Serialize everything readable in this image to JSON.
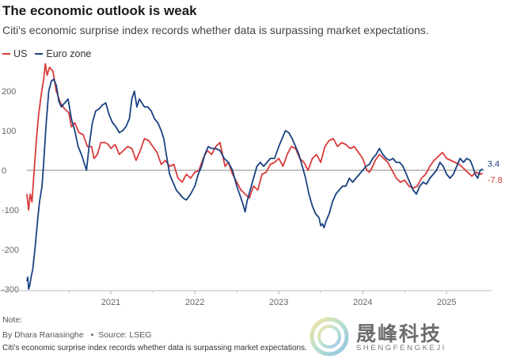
{
  "header": {
    "title": "The economic outlook is weak",
    "subtitle": "Citi's economic surprise index records whether data is surpassing market expectations."
  },
  "footer": {
    "note": "Note:",
    "credit": "By Dhara Ranasinghe",
    "bullet": "•",
    "source": "Source: LSEG",
    "subtitle_repeat": "Citi's economic surprise index records whether data is surpassing market expectations."
  },
  "watermark": {
    "text": "晟峰科技",
    "sub": "SHENGFENGKEJI"
  },
  "colors": {
    "us": "#d93a3a",
    "euro": "#1b4282",
    "axis": "#bbbbbb",
    "zero": "#888888",
    "label": "#666666"
  },
  "chart_data": {
    "type": "line",
    "title": "The economic outlook is weak",
    "xlabel": "",
    "ylabel": "",
    "xlim": [
      2020.0,
      2025.45
    ],
    "ylim": [
      -300,
      270
    ],
    "yticks": [
      -300,
      -200,
      -100,
      0,
      100,
      200
    ],
    "ytick_labels": [
      "-300",
      "-200",
      "-100",
      "0",
      "100",
      "200"
    ],
    "xticks": [
      2021,
      2022,
      2023,
      2024,
      2025
    ],
    "xtick_labels": [
      "2021",
      "2022",
      "2023",
      "2024",
      "2025"
    ],
    "legend": [
      "US",
      "Euro zone"
    ],
    "legend_position": "top-left",
    "series": [
      {
        "name": "US",
        "end_label": "-7.8",
        "points": [
          [
            2020.0,
            -60
          ],
          [
            2020.02,
            -100
          ],
          [
            2020.04,
            -60
          ],
          [
            2020.06,
            -80
          ],
          [
            2020.08,
            -20
          ],
          [
            2020.11,
            70
          ],
          [
            2020.14,
            140
          ],
          [
            2020.17,
            190
          ],
          [
            2020.2,
            230
          ],
          [
            2020.22,
            270
          ],
          [
            2020.24,
            240
          ],
          [
            2020.27,
            260
          ],
          [
            2020.31,
            250
          ],
          [
            2020.35,
            200
          ],
          [
            2020.4,
            170
          ],
          [
            2020.45,
            155
          ],
          [
            2020.5,
            145
          ],
          [
            2020.53,
            110
          ],
          [
            2020.57,
            120
          ],
          [
            2020.62,
            95
          ],
          [
            2020.67,
            90
          ],
          [
            2020.72,
            60
          ],
          [
            2020.77,
            60
          ],
          [
            2020.8,
            30
          ],
          [
            2020.84,
            40
          ],
          [
            2020.88,
            70
          ],
          [
            2020.93,
            70
          ],
          [
            2020.97,
            65
          ],
          [
            2021.0,
            55
          ],
          [
            2021.05,
            65
          ],
          [
            2021.1,
            40
          ],
          [
            2021.15,
            50
          ],
          [
            2021.2,
            60
          ],
          [
            2021.25,
            55
          ],
          [
            2021.3,
            25
          ],
          [
            2021.35,
            50
          ],
          [
            2021.4,
            80
          ],
          [
            2021.45,
            75
          ],
          [
            2021.5,
            60
          ],
          [
            2021.55,
            45
          ],
          [
            2021.6,
            15
          ],
          [
            2021.65,
            25
          ],
          [
            2021.7,
            10
          ],
          [
            2021.75,
            15
          ],
          [
            2021.8,
            -20
          ],
          [
            2021.85,
            -30
          ],
          [
            2021.9,
            -10
          ],
          [
            2021.95,
            -20
          ],
          [
            2022.0,
            -5
          ],
          [
            2022.05,
            0
          ],
          [
            2022.1,
            30
          ],
          [
            2022.15,
            50
          ],
          [
            2022.2,
            40
          ],
          [
            2022.25,
            60
          ],
          [
            2022.3,
            70
          ],
          [
            2022.33,
            40
          ],
          [
            2022.36,
            10
          ],
          [
            2022.4,
            20
          ],
          [
            2022.45,
            -10
          ],
          [
            2022.5,
            -30
          ],
          [
            2022.55,
            -50
          ],
          [
            2022.6,
            -60
          ],
          [
            2022.65,
            -70
          ],
          [
            2022.7,
            -40
          ],
          [
            2022.75,
            -50
          ],
          [
            2022.8,
            -10
          ],
          [
            2022.85,
            -5
          ],
          [
            2022.9,
            15
          ],
          [
            2022.95,
            20
          ],
          [
            2023.0,
            30
          ],
          [
            2023.05,
            10
          ],
          [
            2023.1,
            40
          ],
          [
            2023.15,
            60
          ],
          [
            2023.2,
            55
          ],
          [
            2023.25,
            30
          ],
          [
            2023.3,
            20
          ],
          [
            2023.35,
            0
          ],
          [
            2023.4,
            30
          ],
          [
            2023.45,
            40
          ],
          [
            2023.5,
            20
          ],
          [
            2023.55,
            60
          ],
          [
            2023.6,
            75
          ],
          [
            2023.65,
            80
          ],
          [
            2023.7,
            60
          ],
          [
            2023.75,
            70
          ],
          [
            2023.8,
            65
          ],
          [
            2023.85,
            55
          ],
          [
            2023.9,
            60
          ],
          [
            2023.95,
            45
          ],
          [
            2024.0,
            30
          ],
          [
            2024.05,
            0
          ],
          [
            2024.08,
            -5
          ],
          [
            2024.12,
            10
          ],
          [
            2024.15,
            25
          ],
          [
            2024.2,
            40
          ],
          [
            2024.25,
            30
          ],
          [
            2024.3,
            20
          ],
          [
            2024.35,
            0
          ],
          [
            2024.4,
            -20
          ],
          [
            2024.45,
            -30
          ],
          [
            2024.5,
            -25
          ],
          [
            2024.55,
            -40
          ],
          [
            2024.6,
            -45
          ],
          [
            2024.65,
            -40
          ],
          [
            2024.7,
            -20
          ],
          [
            2024.75,
            -10
          ],
          [
            2024.8,
            10
          ],
          [
            2024.85,
            25
          ],
          [
            2024.9,
            35
          ],
          [
            2024.95,
            45
          ],
          [
            2025.0,
            30
          ],
          [
            2025.05,
            25
          ],
          [
            2025.1,
            20
          ],
          [
            2025.15,
            15
          ],
          [
            2025.2,
            5
          ],
          [
            2025.25,
            -5
          ],
          [
            2025.3,
            -15
          ],
          [
            2025.35,
            -5
          ],
          [
            2025.4,
            -10
          ],
          [
            2025.43,
            -7.8
          ]
        ]
      },
      {
        "name": "Euro zone",
        "end_label": "3.4",
        "points": [
          [
            2020.0,
            -280
          ],
          [
            2020.01,
            -270
          ],
          [
            2020.02,
            -300
          ],
          [
            2020.035,
            -290
          ],
          [
            2020.05,
            -270
          ],
          [
            2020.07,
            -250
          ],
          [
            2020.1,
            -190
          ],
          [
            2020.13,
            -120
          ],
          [
            2020.15,
            -80
          ],
          [
            2020.18,
            -40
          ],
          [
            2020.2,
            20
          ],
          [
            2020.23,
            120
          ],
          [
            2020.26,
            200
          ],
          [
            2020.29,
            225
          ],
          [
            2020.32,
            230
          ],
          [
            2020.35,
            215
          ],
          [
            2020.38,
            175
          ],
          [
            2020.41,
            160
          ],
          [
            2020.45,
            170
          ],
          [
            2020.49,
            180
          ],
          [
            2020.53,
            130
          ],
          [
            2020.57,
            100
          ],
          [
            2020.61,
            60
          ],
          [
            2020.65,
            40
          ],
          [
            2020.68,
            20
          ],
          [
            2020.71,
            0
          ],
          [
            2020.74,
            60
          ],
          [
            2020.78,
            120
          ],
          [
            2020.82,
            150
          ],
          [
            2020.86,
            155
          ],
          [
            2020.9,
            165
          ],
          [
            2020.94,
            170
          ],
          [
            2020.98,
            140
          ],
          [
            2021.02,
            120
          ],
          [
            2021.06,
            110
          ],
          [
            2021.1,
            95
          ],
          [
            2021.14,
            100
          ],
          [
            2021.18,
            110
          ],
          [
            2021.22,
            130
          ],
          [
            2021.25,
            180
          ],
          [
            2021.28,
            200
          ],
          [
            2021.31,
            160
          ],
          [
            2021.34,
            180
          ],
          [
            2021.37,
            170
          ],
          [
            2021.4,
            160
          ],
          [
            2021.44,
            160
          ],
          [
            2021.48,
            150
          ],
          [
            2021.52,
            130
          ],
          [
            2021.56,
            120
          ],
          [
            2021.6,
            100
          ],
          [
            2021.63,
            80
          ],
          [
            2021.66,
            40
          ],
          [
            2021.7,
            -10
          ],
          [
            2021.74,
            -30
          ],
          [
            2021.78,
            -50
          ],
          [
            2021.82,
            -60
          ],
          [
            2021.86,
            -70
          ],
          [
            2021.9,
            -75
          ],
          [
            2021.95,
            -60
          ],
          [
            2022.0,
            -40
          ],
          [
            2022.04,
            -10
          ],
          [
            2022.08,
            10
          ],
          [
            2022.12,
            40
          ],
          [
            2022.16,
            60
          ],
          [
            2022.2,
            55
          ],
          [
            2022.25,
            55
          ],
          [
            2022.3,
            50
          ],
          [
            2022.35,
            30
          ],
          [
            2022.4,
            20
          ],
          [
            2022.45,
            0
          ],
          [
            2022.5,
            -40
          ],
          [
            2022.55,
            -70
          ],
          [
            2022.58,
            -90
          ],
          [
            2022.6,
            -105
          ],
          [
            2022.62,
            -80
          ],
          [
            2022.66,
            -50
          ],
          [
            2022.7,
            -20
          ],
          [
            2022.74,
            10
          ],
          [
            2022.78,
            20
          ],
          [
            2022.82,
            10
          ],
          [
            2022.86,
            20
          ],
          [
            2022.9,
            30
          ],
          [
            2022.95,
            30
          ],
          [
            2023.0,
            60
          ],
          [
            2023.04,
            80
          ],
          [
            2023.08,
            100
          ],
          [
            2023.12,
            95
          ],
          [
            2023.16,
            80
          ],
          [
            2023.2,
            60
          ],
          [
            2023.24,
            40
          ],
          [
            2023.28,
            10
          ],
          [
            2023.32,
            -20
          ],
          [
            2023.36,
            -60
          ],
          [
            2023.4,
            -90
          ],
          [
            2023.44,
            -110
          ],
          [
            2023.48,
            -120
          ],
          [
            2023.5,
            -140
          ],
          [
            2023.52,
            -135
          ],
          [
            2023.54,
            -145
          ],
          [
            2023.56,
            -130
          ],
          [
            2023.6,
            -110
          ],
          [
            2023.64,
            -80
          ],
          [
            2023.68,
            -60
          ],
          [
            2023.72,
            -50
          ],
          [
            2023.76,
            -40
          ],
          [
            2023.8,
            -40
          ],
          [
            2023.84,
            -20
          ],
          [
            2023.88,
            -30
          ],
          [
            2023.92,
            -20
          ],
          [
            2023.96,
            -10
          ],
          [
            2024.0,
            0
          ],
          [
            2024.04,
            10
          ],
          [
            2024.08,
            15
          ],
          [
            2024.12,
            30
          ],
          [
            2024.16,
            40
          ],
          [
            2024.2,
            55
          ],
          [
            2024.24,
            40
          ],
          [
            2024.28,
            30
          ],
          [
            2024.32,
            25
          ],
          [
            2024.36,
            30
          ],
          [
            2024.4,
            20
          ],
          [
            2024.44,
            20
          ],
          [
            2024.48,
            10
          ],
          [
            2024.52,
            -10
          ],
          [
            2024.56,
            -30
          ],
          [
            2024.6,
            -50
          ],
          [
            2024.64,
            -60
          ],
          [
            2024.68,
            -40
          ],
          [
            2024.72,
            -30
          ],
          [
            2024.76,
            -35
          ],
          [
            2024.8,
            -20
          ],
          [
            2024.84,
            -10
          ],
          [
            2024.88,
            0
          ],
          [
            2024.92,
            20
          ],
          [
            2024.96,
            10
          ],
          [
            2025.0,
            -10
          ],
          [
            2025.04,
            -20
          ],
          [
            2025.08,
            -10
          ],
          [
            2025.12,
            10
          ],
          [
            2025.16,
            30
          ],
          [
            2025.2,
            20
          ],
          [
            2025.24,
            30
          ],
          [
            2025.28,
            25
          ],
          [
            2025.31,
            10
          ],
          [
            2025.34,
            -10
          ],
          [
            2025.37,
            -20
          ],
          [
            2025.4,
            0
          ],
          [
            2025.43,
            3.4
          ]
        ]
      }
    ]
  }
}
